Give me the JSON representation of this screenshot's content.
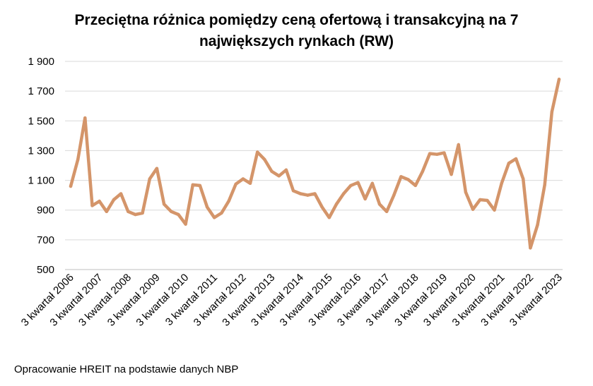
{
  "chart_data": {
    "type": "line",
    "title": [
      "Przeciętna różnica pomiędzy ceną ofertową i transakcyjną na 7",
      "największych rynkach (RW)"
    ],
    "xlabel": "",
    "ylabel": "",
    "ylim": [
      500,
      1900
    ],
    "yticks": [
      500,
      700,
      900,
      1100,
      1300,
      1500,
      1700,
      1900
    ],
    "ytick_labels": [
      "500",
      "700",
      "900",
      "1 100",
      "1 300",
      "1 500",
      "1 700",
      "1 900"
    ],
    "xtick_labels": [
      "3 kwartał 2006",
      "3 kwartał 2007",
      "3 kwartał 2008",
      "3 kwartał 2009",
      "3 kwartał 2010",
      "3 kwartał 2011",
      "3 kwartał 2012",
      "3 kwartał 2013",
      "3 kwartał 2014",
      "3 kwartał 2015",
      "3 kwartał 2016",
      "3 kwartał 2017",
      "3 kwartał 2018",
      "3 kwartał 2019",
      "3 kwartał 2020",
      "3 kwartał 2021",
      "3 kwartał 2022",
      "3 kwartał 2023"
    ],
    "quarters_per_tick": 4,
    "grid": "horizontal",
    "legend": "none",
    "color": "#d4956a",
    "series": [
      {
        "values": [
          1060,
          1240,
          1520,
          930,
          960,
          890,
          970,
          1010,
          890,
          870,
          880,
          1110,
          1180,
          940,
          890,
          870,
          805,
          1070,
          1065,
          920,
          850,
          880,
          960,
          1075,
          1110,
          1080,
          1290,
          1240,
          1160,
          1130,
          1170,
          1030,
          1010,
          1000,
          1010,
          920,
          850,
          940,
          1010,
          1065,
          1085,
          975,
          1080,
          940,
          890,
          1000,
          1125,
          1105,
          1065,
          1160,
          1280,
          1275,
          1285,
          1140,
          1340,
          1020,
          905,
          970,
          965,
          900,
          1080,
          1215,
          1245,
          1110,
          645,
          800,
          1070,
          1560,
          1780
        ]
      }
    ]
  },
  "footer": {
    "source": "Opracowanie HREIT na podstawie danych NBP"
  }
}
